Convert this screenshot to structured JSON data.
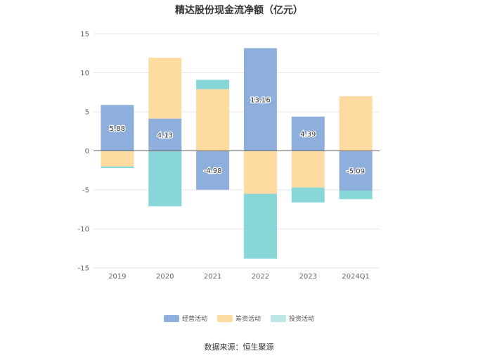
{
  "chart_data": {
    "type": "bar",
    "stacked": true,
    "title": "精达股份现金流净额（亿元）",
    "categories": [
      "2019",
      "2020",
      "2021",
      "2022",
      "2023",
      "2024Q1"
    ],
    "ylim": [
      -15,
      15
    ],
    "yticks": [
      15,
      10,
      5,
      0,
      -5,
      -10,
      -15
    ],
    "grid": true,
    "legend_position": "bottom",
    "series": [
      {
        "name": "经营活动",
        "color": "#8EAFDC",
        "values": [
          5.88,
          4.13,
          -4.98,
          13.16,
          4.39,
          -5.09
        ],
        "labels": [
          "5.88",
          "4.13",
          "-4.98",
          "13.16",
          "4.39",
          "-5.09"
        ]
      },
      {
        "name": "筹资活动",
        "color": "#FEDBA0",
        "values": [
          -2.0,
          7.8,
          7.9,
          -5.5,
          -4.7,
          7.0
        ]
      },
      {
        "name": "投资活动",
        "color": "#87D6D8",
        "values": [
          -0.2,
          -7.1,
          1.2,
          -8.3,
          -1.9,
          -1.1
        ]
      }
    ]
  },
  "legend": {
    "items": [
      "经营活动",
      "筹资活动",
      "投资活动"
    ]
  },
  "source_note": "数据来源：恒生聚源"
}
